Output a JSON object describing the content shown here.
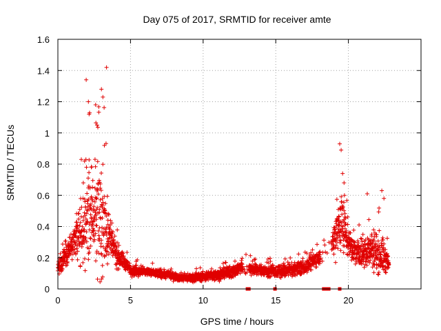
{
  "chart_data": {
    "type": "scatter",
    "title": "Day 075 of 2017, SRMTID for receiver amte",
    "xlabel": "GPS time / hours",
    "ylabel": "SRMTID / TECUs",
    "xlim": [
      0,
      25
    ],
    "ylim": [
      0,
      1.6
    ],
    "grid": true,
    "xticks": [
      0,
      5,
      10,
      15,
      20
    ],
    "xtick_labels": [
      "0",
      "5",
      "10",
      "15",
      "20"
    ],
    "yticks": [
      0,
      0.2,
      0.4,
      0.6,
      0.8,
      1.0,
      1.2,
      1.4,
      1.6
    ],
    "ytick_labels": [
      "0",
      "0.2",
      "0.4",
      "0.6",
      "0.8",
      "1",
      "1.2",
      "1.4",
      "1.6"
    ],
    "marker": "+",
    "series": [
      {
        "name": "SRMTID",
        "color": "#e00000",
        "profile_x": [
          0,
          0.3,
          0.6,
          1.0,
          1.5,
          2.0,
          2.4,
          2.8,
          3.2,
          3.6,
          4.0,
          4.5,
          5.0,
          6.0,
          7.0,
          8.0,
          9.0,
          10.0,
          11.0,
          12.0,
          12.6,
          13.0,
          14.0,
          15.0,
          16.0,
          17.0,
          17.6,
          18.0,
          18.5,
          19.0,
          19.5,
          20.0,
          20.5,
          21.0,
          21.5,
          22.0,
          22.5,
          22.8
        ],
        "profile_median": [
          0.14,
          0.18,
          0.24,
          0.28,
          0.34,
          0.46,
          0.5,
          0.44,
          0.42,
          0.32,
          0.22,
          0.18,
          0.12,
          0.11,
          0.1,
          0.08,
          0.07,
          0.08,
          0.09,
          0.11,
          0.14,
          0.13,
          0.12,
          0.11,
          0.12,
          0.14,
          0.18,
          0.2,
          0.22,
          0.34,
          0.44,
          0.3,
          0.24,
          0.22,
          0.26,
          0.24,
          0.2,
          0.15
        ],
        "profile_spread": [
          0.06,
          0.08,
          0.14,
          0.16,
          0.25,
          0.45,
          0.38,
          0.48,
          0.5,
          0.18,
          0.12,
          0.07,
          0.05,
          0.04,
          0.04,
          0.035,
          0.035,
          0.04,
          0.045,
          0.06,
          0.07,
          0.06,
          0.05,
          0.055,
          0.055,
          0.06,
          0.07,
          0.07,
          0.1,
          0.2,
          0.32,
          0.14,
          0.12,
          0.14,
          0.18,
          0.2,
          0.16,
          0.07
        ],
        "points_per_hour": 120,
        "peaks": [
          {
            "x": 1.95,
            "y": 1.34
          },
          {
            "x": 2.1,
            "y": 1.2
          },
          {
            "x": 2.15,
            "y": 1.12
          },
          {
            "x": 2.3,
            "y": 0.78
          },
          {
            "x": 2.6,
            "y": 1.18
          },
          {
            "x": 2.7,
            "y": 1.05
          },
          {
            "x": 3.0,
            "y": 1.28
          },
          {
            "x": 3.1,
            "y": 1.23
          },
          {
            "x": 3.35,
            "y": 1.42
          },
          {
            "x": 3.2,
            "y": 0.92
          },
          {
            "x": 19.4,
            "y": 0.93
          },
          {
            "x": 19.5,
            "y": 0.89
          },
          {
            "x": 19.6,
            "y": 0.74
          },
          {
            "x": 19.7,
            "y": 0.68
          },
          {
            "x": 21.3,
            "y": 0.61
          },
          {
            "x": 22.3,
            "y": 0.63
          },
          {
            "x": 22.45,
            "y": 0.58
          }
        ],
        "zero_values": [
          {
            "x": 13.05,
            "y": 0
          },
          {
            "x": 13.15,
            "y": 0
          },
          {
            "x": 14.95,
            "y": 0
          },
          {
            "x": 18.3,
            "y": 0
          },
          {
            "x": 18.45,
            "y": 0
          },
          {
            "x": 18.65,
            "y": 0
          },
          {
            "x": 19.4,
            "y": 0
          }
        ]
      }
    ]
  }
}
